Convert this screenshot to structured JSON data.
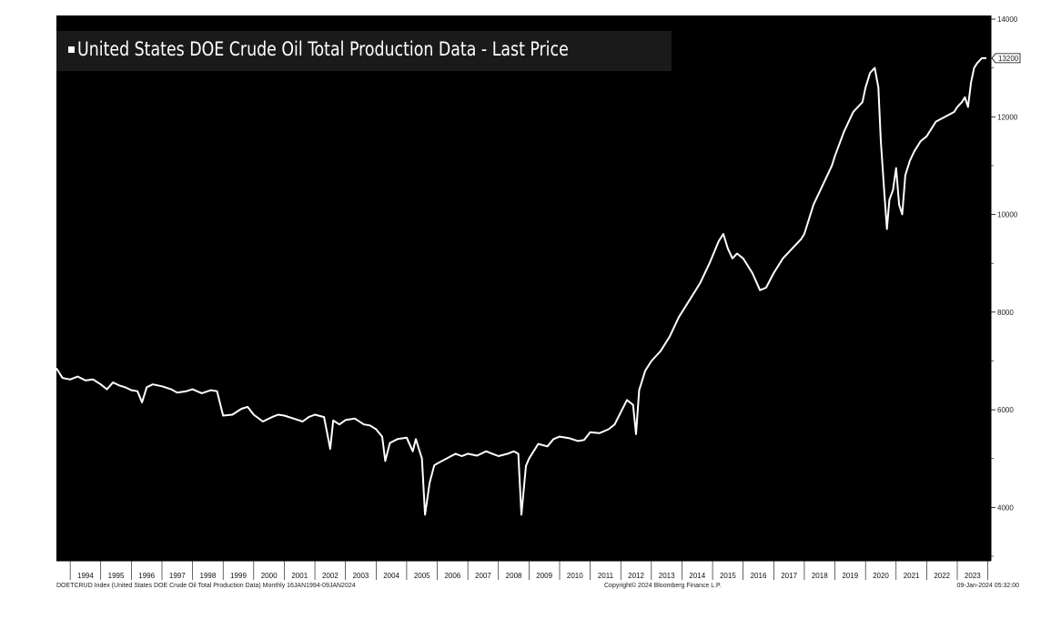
{
  "chart_data": {
    "type": "line",
    "title": "United States DOE Crude Oil Total Production Data - Last Price",
    "colors": {
      "background": "#000000",
      "line": "#ffffff",
      "legend_bg": "#1a1a1a"
    },
    "x_tick_labels": [
      "1994",
      "1995",
      "1996",
      "1997",
      "1998",
      "1999",
      "2000",
      "2001",
      "2002",
      "2003",
      "2004",
      "2005",
      "2006",
      "2007",
      "2008",
      "2009",
      "2010",
      "2011",
      "2012",
      "2013",
      "2014",
      "2015",
      "2016",
      "2017",
      "2018",
      "2019",
      "2020",
      "2021",
      "2022",
      "2023"
    ],
    "xlim": [
      1993.55,
      2024.1
    ],
    "ylim": [
      3000,
      14000
    ],
    "y_ticks": [
      4000,
      6000,
      8000,
      10000,
      12000,
      14000
    ],
    "last_value_label": "13200",
    "grid": false,
    "legend_position": "top-left",
    "series": [
      {
        "name": "United States DOE Crude Oil Total Production Data - Last Price",
        "points": [
          [
            1993.55,
            6850
          ],
          [
            1993.75,
            6650
          ],
          [
            1994.0,
            6620
          ],
          [
            1994.25,
            6680
          ],
          [
            1994.5,
            6600
          ],
          [
            1994.75,
            6620
          ],
          [
            1995.0,
            6520
          ],
          [
            1995.2,
            6420
          ],
          [
            1995.4,
            6560
          ],
          [
            1995.6,
            6500
          ],
          [
            1995.8,
            6460
          ],
          [
            1996.0,
            6400
          ],
          [
            1996.2,
            6380
          ],
          [
            1996.35,
            6150
          ],
          [
            1996.5,
            6460
          ],
          [
            1996.7,
            6520
          ],
          [
            1997.0,
            6480
          ],
          [
            1997.3,
            6420
          ],
          [
            1997.5,
            6350
          ],
          [
            1997.8,
            6380
          ],
          [
            1998.0,
            6420
          ],
          [
            1998.3,
            6340
          ],
          [
            1998.6,
            6400
          ],
          [
            1998.8,
            6380
          ],
          [
            1999.0,
            5880
          ],
          [
            1999.3,
            5900
          ],
          [
            1999.6,
            6020
          ],
          [
            1999.8,
            6060
          ],
          [
            2000.0,
            5900
          ],
          [
            2000.3,
            5760
          ],
          [
            2000.6,
            5850
          ],
          [
            2000.8,
            5900
          ],
          [
            2001.0,
            5880
          ],
          [
            2001.3,
            5820
          ],
          [
            2001.6,
            5760
          ],
          [
            2001.8,
            5850
          ],
          [
            2002.0,
            5900
          ],
          [
            2002.3,
            5850
          ],
          [
            2002.5,
            5200
          ],
          [
            2002.6,
            5780
          ],
          [
            2002.8,
            5700
          ],
          [
            2003.0,
            5790
          ],
          [
            2003.3,
            5820
          ],
          [
            2003.6,
            5700
          ],
          [
            2003.8,
            5680
          ],
          [
            2004.0,
            5600
          ],
          [
            2004.2,
            5450
          ],
          [
            2004.3,
            4950
          ],
          [
            2004.45,
            5320
          ],
          [
            2004.7,
            5400
          ],
          [
            2005.0,
            5430
          ],
          [
            2005.2,
            5150
          ],
          [
            2005.3,
            5400
          ],
          [
            2005.5,
            5000
          ],
          [
            2005.6,
            3850
          ],
          [
            2005.75,
            4500
          ],
          [
            2005.9,
            4860
          ],
          [
            2006.0,
            4900
          ],
          [
            2006.3,
            5000
          ],
          [
            2006.6,
            5100
          ],
          [
            2006.8,
            5050
          ],
          [
            2007.0,
            5100
          ],
          [
            2007.3,
            5060
          ],
          [
            2007.6,
            5150
          ],
          [
            2007.8,
            5100
          ],
          [
            2008.0,
            5050
          ],
          [
            2008.3,
            5100
          ],
          [
            2008.5,
            5150
          ],
          [
            2008.65,
            5100
          ],
          [
            2008.75,
            3850
          ],
          [
            2008.9,
            4850
          ],
          [
            2009.0,
            5000
          ],
          [
            2009.3,
            5300
          ],
          [
            2009.6,
            5250
          ],
          [
            2009.8,
            5400
          ],
          [
            2010.0,
            5450
          ],
          [
            2010.3,
            5420
          ],
          [
            2010.6,
            5360
          ],
          [
            2010.8,
            5380
          ],
          [
            2011.0,
            5540
          ],
          [
            2011.3,
            5520
          ],
          [
            2011.6,
            5600
          ],
          [
            2011.8,
            5700
          ],
          [
            2012.0,
            5950
          ],
          [
            2012.2,
            6200
          ],
          [
            2012.4,
            6100
          ],
          [
            2012.5,
            5500
          ],
          [
            2012.6,
            6400
          ],
          [
            2012.8,
            6800
          ],
          [
            2013.0,
            7000
          ],
          [
            2013.3,
            7200
          ],
          [
            2013.6,
            7500
          ],
          [
            2013.9,
            7900
          ],
          [
            2014.0,
            8000
          ],
          [
            2014.3,
            8300
          ],
          [
            2014.6,
            8600
          ],
          [
            2014.9,
            9000
          ],
          [
            2015.0,
            9150
          ],
          [
            2015.2,
            9450
          ],
          [
            2015.35,
            9600
          ],
          [
            2015.5,
            9300
          ],
          [
            2015.65,
            9100
          ],
          [
            2015.8,
            9200
          ],
          [
            2016.0,
            9100
          ],
          [
            2016.3,
            8800
          ],
          [
            2016.55,
            8450
          ],
          [
            2016.75,
            8500
          ],
          [
            2017.0,
            8800
          ],
          [
            2017.3,
            9100
          ],
          [
            2017.6,
            9300
          ],
          [
            2017.9,
            9500
          ],
          [
            2018.0,
            9600
          ],
          [
            2018.3,
            10200
          ],
          [
            2018.6,
            10600
          ],
          [
            2018.9,
            11000
          ],
          [
            2019.0,
            11200
          ],
          [
            2019.3,
            11700
          ],
          [
            2019.6,
            12100
          ],
          [
            2019.9,
            12300
          ],
          [
            2020.0,
            12600
          ],
          [
            2020.15,
            12900
          ],
          [
            2020.3,
            13000
          ],
          [
            2020.42,
            12600
          ],
          [
            2020.5,
            11500
          ],
          [
            2020.62,
            10400
          ],
          [
            2020.7,
            9700
          ],
          [
            2020.78,
            10300
          ],
          [
            2020.9,
            10500
          ],
          [
            2021.0,
            10950
          ],
          [
            2021.1,
            10200
          ],
          [
            2021.2,
            10000
          ],
          [
            2021.3,
            10800
          ],
          [
            2021.45,
            11100
          ],
          [
            2021.6,
            11300
          ],
          [
            2021.8,
            11500
          ],
          [
            2022.0,
            11600
          ],
          [
            2022.3,
            11900
          ],
          [
            2022.6,
            12000
          ],
          [
            2022.9,
            12100
          ],
          [
            2023.0,
            12200
          ],
          [
            2023.15,
            12300
          ],
          [
            2023.25,
            12400
          ],
          [
            2023.35,
            12200
          ],
          [
            2023.45,
            12700
          ],
          [
            2023.55,
            13000
          ],
          [
            2023.65,
            13100
          ],
          [
            2023.8,
            13200
          ],
          [
            2023.95,
            13200
          ]
        ]
      }
    ]
  },
  "footer": {
    "left": "DOETCRUD Index (United States DOE Crude Oil Total Production Data)  Monthly 16JAN1994-09JAN2024",
    "center": "Copyright© 2024 Bloomberg Finance L.P.",
    "right": "09-Jan-2024 05:32:00"
  }
}
